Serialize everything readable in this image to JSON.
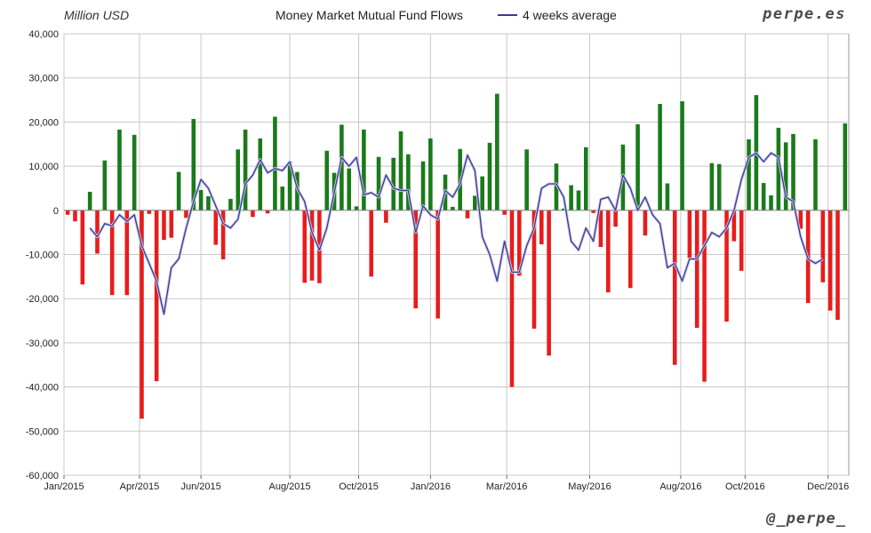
{
  "header": {
    "unit_label": "Million USD",
    "brand": "perpe.es",
    "handle": "@_perpe_"
  },
  "colors": {
    "positive": "#1a7a1a",
    "negative": "#e81c1c",
    "average_line": "#3b3b8f",
    "grid": "#c8c8c8"
  },
  "chart_data": {
    "type": "bar",
    "title": "Money Market Mutual Fund Flows",
    "ylim": [
      -60000,
      40000
    ],
    "yticks": [
      40000,
      30000,
      20000,
      10000,
      0,
      -10000,
      -20000,
      -30000,
      -40000,
      -50000,
      -60000
    ],
    "ytick_labels": [
      "40,000",
      "30,000",
      "20,000",
      "10,000",
      "0",
      "-10,000",
      "-20,000",
      "-30,000",
      "-40,000",
      "-50,000",
      "-60,000"
    ],
    "xtick_labels": [
      "Jan/2015",
      "Apr/2015",
      "Jun/2015",
      "Aug/2015",
      "Oct/2015",
      "Jan/2016",
      "Mar/2016",
      "May/2016",
      "Aug/2016",
      "Oct/2016",
      "Dec/2016"
    ],
    "xtick_weeks": [
      0,
      10.2,
      18.5,
      30.5,
      39.8,
      49.5,
      59.8,
      71,
      83.3,
      92,
      103.2
    ],
    "grid": true,
    "legend_placement": "top-center",
    "series": [
      {
        "name": "",
        "kind": "bar",
        "values": [
          -1000,
          -2500,
          -16800,
          4200,
          -9800,
          11300,
          -19200,
          18300,
          -19200,
          17100,
          -47200,
          -800,
          -38700,
          -6700,
          -6200,
          8700,
          -1700,
          20700,
          4600,
          3200,
          -7800,
          -11100,
          2600,
          13800,
          18300,
          -1500,
          16300,
          -700,
          21200,
          5400,
          11100,
          8700,
          -16400,
          -15900,
          -16500,
          13500,
          8500,
          19400,
          9500,
          900,
          18300,
          -15000,
          12100,
          -2800,
          11900,
          17900,
          12700,
          -22200,
          11100,
          16300,
          -24500,
          8100,
          800,
          13900,
          -1800,
          3300,
          7700,
          15300,
          26400,
          -1000,
          -40000,
          -14800,
          13800,
          -26800,
          -7700,
          -32900,
          10600,
          400,
          5700,
          4500,
          14300,
          -600,
          -8300,
          -18600,
          -3700,
          14900,
          -17600,
          19500,
          -5700,
          0,
          24100,
          6100,
          -35000,
          24700,
          -10800,
          -26600,
          -38800,
          10700,
          10500,
          -25200,
          -7000,
          -13700,
          16100,
          26100,
          6200,
          3400,
          18700,
          15400,
          17300,
          -4200,
          -21000,
          16100,
          -16300,
          -22700,
          -24800,
          19700
        ]
      },
      {
        "name": "4 weeks average",
        "kind": "line",
        "start_week": 3,
        "values": [
          -4000,
          -6000,
          -3000,
          -3500,
          -1000,
          -2500,
          -1000,
          -8000,
          -12000,
          -16000,
          -23500,
          -13000,
          -11000,
          -4000,
          2000,
          7000,
          5000,
          1000,
          -3000,
          -4000,
          -2000,
          6000,
          8000,
          11500,
          8500,
          9500,
          9000,
          11000,
          5000,
          2000,
          -5000,
          -9000,
          -4000,
          4000,
          12000,
          10000,
          12000,
          3500,
          4000,
          3000,
          8000,
          5000,
          4500,
          4500,
          -5000,
          1000,
          -1000,
          -2000,
          4500,
          3000,
          6000,
          12500,
          9000,
          -6000,
          -10000,
          -16000,
          -7000,
          -14000,
          -14000,
          -8000,
          -4000,
          5000,
          6000,
          6000,
          3000,
          -7000,
          -9000,
          -4000,
          -7000,
          2500,
          3000,
          0,
          8000,
          5000,
          0,
          3000,
          -1000,
          -3000,
          -13000,
          -12000,
          -16000,
          -11000,
          -11000,
          -8000,
          -5000,
          -6000,
          -4000,
          0,
          7000,
          12000,
          13000,
          11000,
          13000,
          12000,
          3000,
          2000,
          -6000,
          -11000,
          -12000,
          -11000
        ]
      }
    ]
  }
}
